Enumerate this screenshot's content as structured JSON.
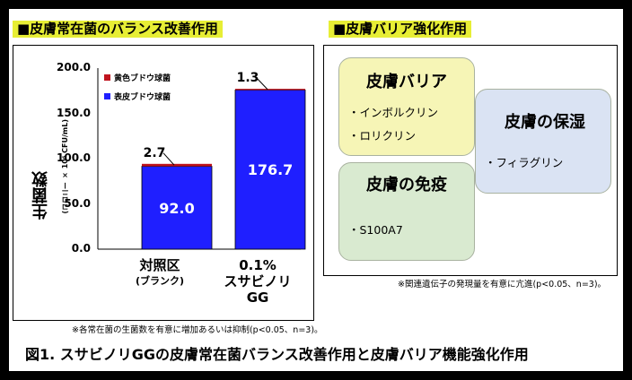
{
  "left_panel": {
    "title": "■皮膚常在菌のバランス改善作用",
    "footnote": "※各常在菌の生菌数を有意に増加あるいは抑制(p<0.05、n=3)。"
  },
  "right_panel": {
    "title": "■皮膚バリア強化作用",
    "box1": {
      "title": "皮膚バリア",
      "items": [
        "・インボルクリン",
        "・ロリクリン"
      ]
    },
    "box2": {
      "title": "皮膚の保湿",
      "items": [
        "・フィラグリン"
      ]
    },
    "box3": {
      "title": "皮膚の免疫",
      "items": [
        "・S100A7"
      ]
    },
    "footnote": "※関連遺伝子の発現量を有意に亢進(p<0.05、n=3)。"
  },
  "caption": "図1. スサビノリGGの皮膚常在菌バランス改善作用と皮膚バリア機能強化作用",
  "chart_data": {
    "type": "bar",
    "stacked": true,
    "categories": [
      {
        "main": "対照区",
        "sub": "(ブランク)"
      },
      {
        "main": "0.1%\nスサビノリ\nGG",
        "sub": ""
      }
    ],
    "series": [
      {
        "name": "表皮ブドウ球菌",
        "values": [
          92.0,
          176.7
        ],
        "labels": [
          "92.0",
          "176.7"
        ],
        "color": "#1f1fff"
      },
      {
        "name": "黄色ブドウ球菌",
        "values": [
          2.7,
          1.3
        ],
        "labels": [
          "2.7",
          "1.3"
        ],
        "color": "#c0141e"
      }
    ],
    "ylabel": "生菌数",
    "yunit": "(コロニー × 10⁶ CFU/mL)",
    "ylim": [
      0,
      200
    ],
    "yticks": [
      "0.0",
      "50.0",
      "100.0",
      "150.0",
      "200.0"
    ],
    "legend_position": "top-left"
  }
}
